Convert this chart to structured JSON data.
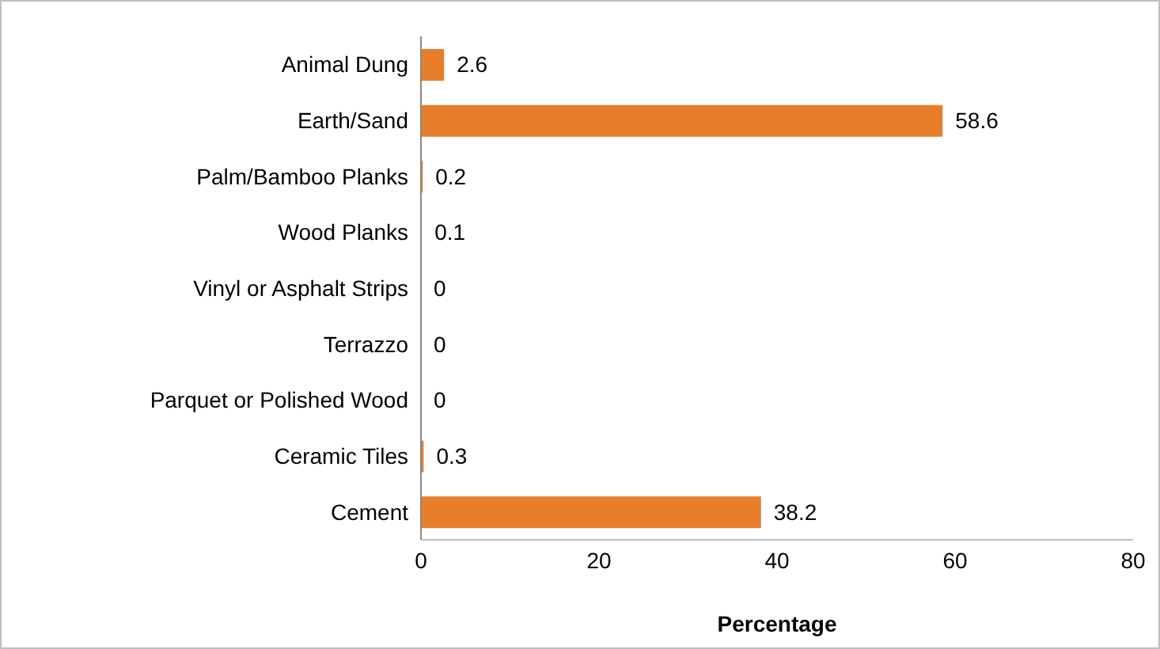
{
  "chart_data": {
    "type": "bar",
    "orientation": "horizontal",
    "xlabel": "Percentage",
    "categories": [
      "Animal Dung",
      "Earth/Sand",
      "Palm/Bamboo  Planks",
      "Wood Planks",
      "Vinyl or Asphalt Strips",
      "Terrazzo",
      "Parquet or Polished Wood",
      "Ceramic Tiles",
      "Cement"
    ],
    "values": [
      2.6,
      58.6,
      0.2,
      0.1,
      0,
      0,
      0,
      0.3,
      38.2
    ],
    "color": "#e87d2a",
    "xlim": [
      0,
      80
    ],
    "xticks": [
      0,
      20,
      40,
      60,
      80
    ],
    "data_labels": true,
    "grid": false
  }
}
